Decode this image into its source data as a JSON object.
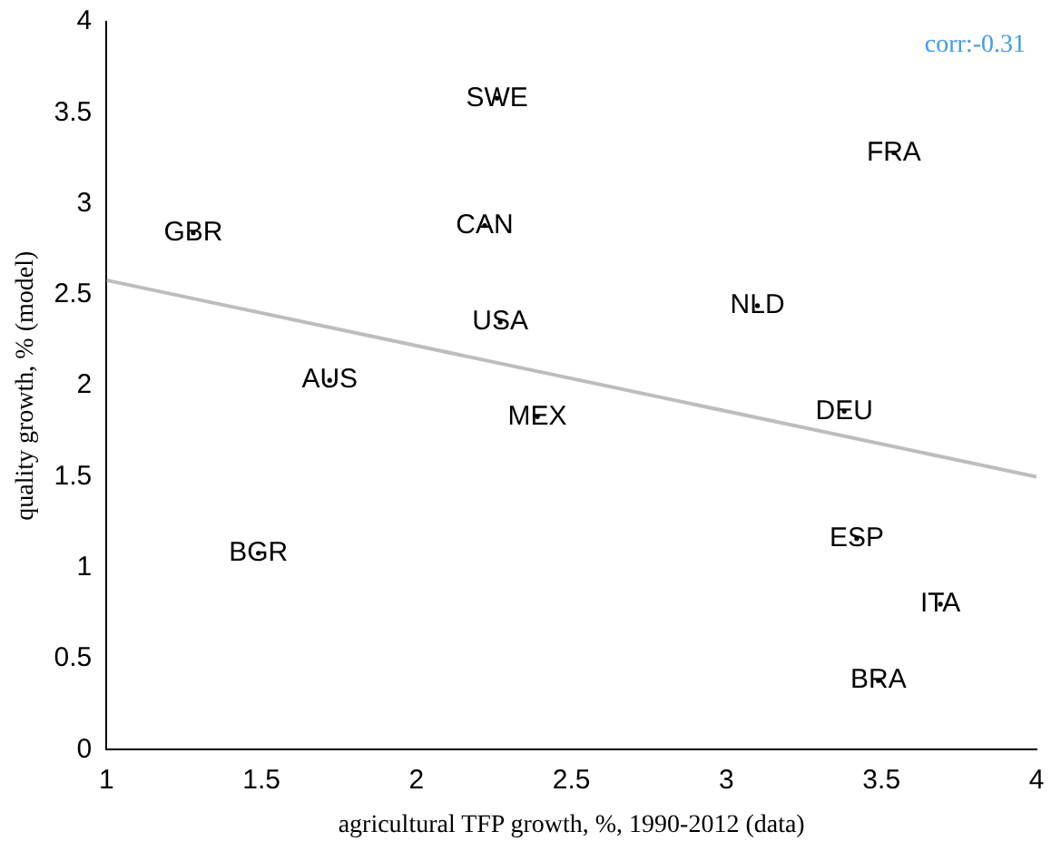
{
  "chart_data": {
    "type": "scatter",
    "xlabel": "agricultural TFP growth, %, 1990-2012 (data)",
    "ylabel": "quality growth, % (model)",
    "annotations": [
      "corr:-0.31"
    ],
    "xlim": [
      1,
      4
    ],
    "xticks": [
      1,
      1.5,
      2,
      2.5,
      3,
      3.5,
      4
    ],
    "ylim": [
      0,
      4
    ],
    "yticks": [
      0,
      0.5,
      1,
      1.5,
      2,
      2.5,
      3,
      3.5,
      4
    ],
    "grid": false,
    "legend": false,
    "series": [
      {
        "type": "scatter",
        "marker": "circle",
        "color": "#000000",
        "x": [
          2.26,
          3.54,
          1.28,
          2.22,
          3.1,
          2.27,
          1.72,
          2.39,
          3.38,
          3.42,
          3.69,
          1.49,
          3.49
        ],
        "values": [
          3.58,
          3.28,
          2.84,
          2.88,
          2.44,
          2.35,
          2.03,
          1.83,
          1.86,
          1.16,
          0.8,
          1.08,
          0.38
        ],
        "value_labels": [
          "SWE",
          "FRA",
          "GBR",
          "CAN",
          "NLD",
          "USA",
          "AUS",
          "MEX",
          "DEU",
          "ESP",
          "ITA",
          "BGR",
          "BRA"
        ]
      },
      {
        "type": "line",
        "marker": "none",
        "color": "#bdbdbd",
        "x": [
          1,
          4
        ],
        "values": [
          2.58,
          1.5
        ]
      }
    ]
  }
}
